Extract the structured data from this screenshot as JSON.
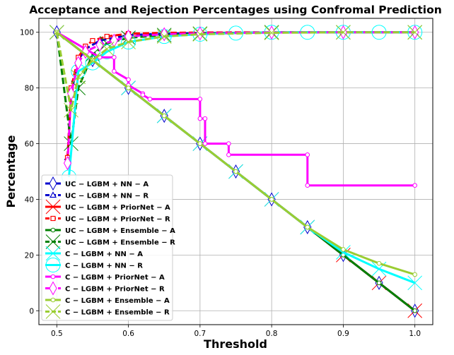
{
  "chart_data": {
    "type": "line",
    "title": "Acceptance and Rejection Percentages using Confromal Prediction",
    "xlabel": "Threshold",
    "ylabel": "Percentage",
    "xlim": [
      0.475,
      1.025
    ],
    "ylim": [
      -5,
      105
    ],
    "xticks": [
      0.5,
      0.6,
      0.7,
      0.8,
      0.9,
      1.0
    ],
    "xtick_labels": [
      "0.5",
      "0.6",
      "0.7",
      "0.8",
      "0.9",
      "1.0"
    ],
    "yticks": [
      0,
      20,
      40,
      60,
      80,
      100
    ],
    "ytick_labels": [
      "0",
      "20",
      "40",
      "60",
      "80",
      "100"
    ],
    "grid": true,
    "legend_position": "lower-left",
    "series": [
      {
        "name": "UC − LGBM + NN − A",
        "color": "#0000cd",
        "style": "solid",
        "marker": "diamond-open",
        "x": [
          0.5,
          0.55,
          0.6,
          0.65,
          0.7,
          0.75,
          0.8,
          0.85,
          0.9,
          0.95,
          1.0
        ],
        "y": [
          100,
          90,
          80,
          70,
          60,
          50,
          40,
          30,
          20,
          10,
          0
        ]
      },
      {
        "name": "UC − LGBM + NN − R",
        "color": "#0000cd",
        "style": "dashed",
        "marker": "triangle-open",
        "x": [
          0.515,
          0.52,
          0.53,
          0.54,
          0.56,
          0.58,
          0.6,
          0.65,
          0.7,
          0.8,
          0.9,
          1.0
        ],
        "y": [
          55,
          78,
          90,
          94,
          97,
          98,
          99,
          99.5,
          99.7,
          99.9,
          100,
          100
        ]
      },
      {
        "name": "UC − LGBM + PriorNet − A",
        "color": "#ff0000",
        "style": "solid",
        "marker": "x",
        "x": [
          0.5,
          0.55,
          0.6,
          0.65,
          0.7,
          0.75,
          0.8,
          0.85,
          0.9,
          0.95,
          1.0
        ],
        "y": [
          100,
          90,
          80,
          70,
          60,
          50,
          40,
          30,
          20,
          10,
          0
        ]
      },
      {
        "name": "UC − LGBM + PriorNet − R",
        "color": "#ff0000",
        "style": "dashed",
        "marker": "square-open",
        "x": [
          0.515,
          0.52,
          0.53,
          0.54,
          0.55,
          0.57,
          0.6,
          0.65,
          0.7,
          0.8,
          0.9,
          1.0
        ],
        "y": [
          55,
          80,
          91,
          95,
          97,
          98.5,
          99.5,
          99.8,
          99.9,
          100,
          100,
          100
        ]
      },
      {
        "name": "UC − LGBM + Ensemble − A",
        "color": "#008000",
        "style": "solid",
        "marker": "circle-small",
        "x": [
          0.5,
          0.55,
          0.6,
          0.65,
          0.7,
          0.75,
          0.8,
          0.85,
          0.9,
          0.95,
          1.0
        ],
        "y": [
          100,
          90,
          80,
          70,
          60,
          50,
          40,
          30,
          20,
          10,
          0
        ]
      },
      {
        "name": "UC − LGBM + Ensemble − R",
        "color": "#008000",
        "style": "dashed",
        "marker": "x",
        "x": [
          0.5,
          0.52,
          0.53,
          0.55,
          0.57,
          0.6,
          0.65,
          0.7,
          0.8,
          0.9,
          1.0
        ],
        "y": [
          100,
          60,
          80,
          92,
          96,
          98,
          99,
          99.5,
          100,
          100,
          100
        ]
      },
      {
        "name": "C − LGBM + NN − A",
        "color": "#00ffff",
        "style": "solid",
        "marker": "x",
        "x": [
          0.5,
          0.55,
          0.6,
          0.65,
          0.7,
          0.75,
          0.8,
          0.85,
          0.9,
          0.95,
          1.0
        ],
        "y": [
          100,
          90,
          80,
          70,
          60,
          50,
          40,
          30,
          21,
          15,
          10
        ]
      },
      {
        "name": "C − LGBM + NN − R",
        "color": "#00ffff",
        "style": "solid",
        "marker": "circle-large",
        "x": [
          0.517,
          0.53,
          0.55,
          0.57,
          0.6,
          0.65,
          0.7,
          0.75,
          0.8,
          0.85,
          0.9,
          0.95,
          1.0
        ],
        "y": [
          48,
          86,
          89,
          93,
          96.5,
          98.5,
          99.3,
          99.7,
          100,
          100,
          100,
          100,
          100
        ]
      },
      {
        "name": "C − LGBM + PriorNet − A",
        "color": "#ff00ff",
        "style": "solid",
        "marker": "circle-small",
        "x": [
          0.5,
          0.56,
          0.58,
          0.58,
          0.6,
          0.6,
          0.62,
          0.62,
          0.63,
          0.63,
          0.7,
          0.7,
          0.707,
          0.707,
          0.74,
          0.74,
          0.85,
          0.85,
          1.0
        ],
        "y": [
          100,
          91,
          91,
          86,
          83,
          81,
          78,
          77.5,
          76,
          76,
          76,
          69,
          69,
          60,
          60,
          56,
          56,
          45,
          45
        ]
      },
      {
        "name": "C − LGBM + PriorNet − R",
        "color": "#ff00ff",
        "style": "dashed",
        "marker": "diamond-open",
        "x": [
          0.515,
          0.52,
          0.53,
          0.54,
          0.56,
          0.58,
          0.6,
          0.65,
          0.7,
          0.8,
          0.9,
          1.0
        ],
        "y": [
          53,
          78,
          89,
          93,
          95.5,
          97,
          98.5,
          99.3,
          99.6,
          99.9,
          100,
          100
        ]
      },
      {
        "name": "C − LGBM + Ensemble − A",
        "color": "#9acd32",
        "style": "solid",
        "marker": "circle-small",
        "x": [
          0.5,
          0.55,
          0.6,
          0.65,
          0.7,
          0.75,
          0.8,
          0.85,
          0.9,
          0.95,
          1.0
        ],
        "y": [
          100,
          90,
          80,
          70,
          60,
          50,
          40,
          30,
          22,
          17,
          13
        ]
      },
      {
        "name": "C − LGBM + Ensemble − R",
        "color": "#9acd32",
        "style": "dashed",
        "marker": "x",
        "x": [
          0.5,
          0.52,
          0.53,
          0.55,
          0.57,
          0.6,
          0.65,
          0.7,
          0.8,
          0.9,
          1.0
        ],
        "y": [
          100,
          72,
          84,
          90,
          94,
          96.5,
          98.5,
          99.3,
          99.8,
          100,
          100
        ]
      }
    ]
  }
}
